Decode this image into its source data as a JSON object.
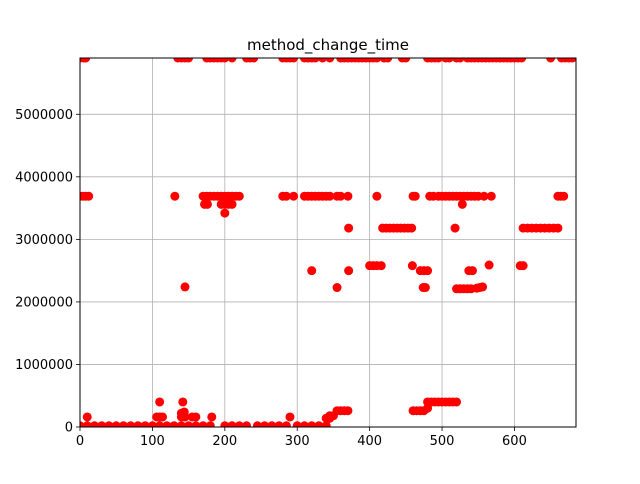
{
  "chart_data": {
    "type": "scatter",
    "title": "method_change_time",
    "xlabel": "",
    "ylabel": "",
    "xlim": [
      0,
      685
    ],
    "ylim": [
      0,
      5900000
    ],
    "grid": true,
    "marker_color": "#ff0000",
    "xticks": [
      0,
      100,
      200,
      300,
      400,
      500,
      600
    ],
    "yticks": [
      0,
      1000000,
      2000000,
      3000000,
      4000000,
      5000000
    ],
    "xtick_labels": [
      "0",
      "100",
      "200",
      "300",
      "400",
      "500",
      "600"
    ],
    "ytick_labels": [
      "0",
      "1000000",
      "2000000",
      "3000000",
      "4000000",
      "5000000"
    ],
    "series": [
      {
        "points": [
          [
            0,
            5900000
          ],
          [
            5,
            5900000
          ],
          [
            8,
            5900000
          ],
          [
            135,
            5900000
          ],
          [
            140,
            5900000
          ],
          [
            145,
            5900000
          ],
          [
            150,
            5900000
          ],
          [
            175,
            5900000
          ],
          [
            180,
            5900000
          ],
          [
            185,
            5900000
          ],
          [
            190,
            5900000
          ],
          [
            195,
            5900000
          ],
          [
            200,
            5900000
          ],
          [
            210,
            5900000
          ],
          [
            230,
            5900000
          ],
          [
            235,
            5900000
          ],
          [
            240,
            5900000
          ],
          [
            280,
            5900000
          ],
          [
            285,
            5900000
          ],
          [
            290,
            5900000
          ],
          [
            295,
            5900000
          ],
          [
            310,
            5900000
          ],
          [
            315,
            5900000
          ],
          [
            320,
            5900000
          ],
          [
            325,
            5900000
          ],
          [
            335,
            5900000
          ],
          [
            345,
            5900000
          ],
          [
            360,
            5900000
          ],
          [
            365,
            5900000
          ],
          [
            370,
            5900000
          ],
          [
            375,
            5900000
          ],
          [
            380,
            5900000
          ],
          [
            385,
            5900000
          ],
          [
            390,
            5900000
          ],
          [
            395,
            5900000
          ],
          [
            400,
            5900000
          ],
          [
            405,
            5900000
          ],
          [
            410,
            5900000
          ],
          [
            420,
            5900000
          ],
          [
            425,
            5900000
          ],
          [
            445,
            5900000
          ],
          [
            450,
            5900000
          ],
          [
            480,
            5900000
          ],
          [
            485,
            5900000
          ],
          [
            490,
            5900000
          ],
          [
            495,
            5900000
          ],
          [
            505,
            5900000
          ],
          [
            510,
            5900000
          ],
          [
            520,
            5900000
          ],
          [
            525,
            5900000
          ],
          [
            535,
            5900000
          ],
          [
            540,
            5900000
          ],
          [
            545,
            5900000
          ],
          [
            550,
            5900000
          ],
          [
            555,
            5900000
          ],
          [
            560,
            5900000
          ],
          [
            565,
            5900000
          ],
          [
            570,
            5900000
          ],
          [
            575,
            5900000
          ],
          [
            580,
            5900000
          ],
          [
            585,
            5900000
          ],
          [
            590,
            5900000
          ],
          [
            595,
            5900000
          ],
          [
            600,
            5900000
          ],
          [
            605,
            5900000
          ],
          [
            610,
            5900000
          ],
          [
            650,
            5900000
          ],
          [
            665,
            5900000
          ],
          [
            670,
            5900000
          ],
          [
            675,
            5900000
          ],
          [
            680,
            5900000
          ],
          [
            0,
            3690000
          ],
          [
            4,
            3690000
          ],
          [
            8,
            3690000
          ],
          [
            12,
            3690000
          ],
          [
            131,
            3690000
          ],
          [
            170,
            3690000
          ],
          [
            175,
            3690000
          ],
          [
            180,
            3690000
          ],
          [
            185,
            3690000
          ],
          [
            190,
            3690000
          ],
          [
            195,
            3690000
          ],
          [
            200,
            3690000
          ],
          [
            205,
            3690000
          ],
          [
            210,
            3690000
          ],
          [
            215,
            3690000
          ],
          [
            220,
            3690000
          ],
          [
            172,
            3560000
          ],
          [
            176,
            3560000
          ],
          [
            195,
            3560000
          ],
          [
            200,
            3560000
          ],
          [
            205,
            3560000
          ],
          [
            210,
            3560000
          ],
          [
            200,
            3420000
          ],
          [
            280,
            3690000
          ],
          [
            285,
            3690000
          ],
          [
            295,
            3690000
          ],
          [
            310,
            3690000
          ],
          [
            315,
            3690000
          ],
          [
            320,
            3690000
          ],
          [
            325,
            3690000
          ],
          [
            330,
            3690000
          ],
          [
            335,
            3690000
          ],
          [
            340,
            3690000
          ],
          [
            345,
            3690000
          ],
          [
            355,
            3690000
          ],
          [
            360,
            3690000
          ],
          [
            370,
            3690000
          ],
          [
            410,
            3690000
          ],
          [
            460,
            3690000
          ],
          [
            463,
            3690000
          ],
          [
            483,
            3690000
          ],
          [
            488,
            3690000
          ],
          [
            495,
            3690000
          ],
          [
            500,
            3690000
          ],
          [
            505,
            3690000
          ],
          [
            510,
            3690000
          ],
          [
            515,
            3690000
          ],
          [
            520,
            3690000
          ],
          [
            525,
            3690000
          ],
          [
            530,
            3690000
          ],
          [
            535,
            3690000
          ],
          [
            540,
            3690000
          ],
          [
            545,
            3690000
          ],
          [
            550,
            3690000
          ],
          [
            558,
            3690000
          ],
          [
            568,
            3690000
          ],
          [
            528,
            3560000
          ],
          [
            660,
            3690000
          ],
          [
            664,
            3690000
          ],
          [
            668,
            3690000
          ],
          [
            371,
            3180000
          ],
          [
            418,
            3180000
          ],
          [
            423,
            3180000
          ],
          [
            428,
            3180000
          ],
          [
            433,
            3180000
          ],
          [
            438,
            3180000
          ],
          [
            443,
            3180000
          ],
          [
            448,
            3180000
          ],
          [
            453,
            3180000
          ],
          [
            458,
            3180000
          ],
          [
            518,
            3180000
          ],
          [
            612,
            3180000
          ],
          [
            618,
            3180000
          ],
          [
            624,
            3180000
          ],
          [
            630,
            3180000
          ],
          [
            636,
            3180000
          ],
          [
            642,
            3180000
          ],
          [
            648,
            3180000
          ],
          [
            654,
            3180000
          ],
          [
            660,
            3180000
          ],
          [
            400,
            2580000
          ],
          [
            405,
            2580000
          ],
          [
            410,
            2580000
          ],
          [
            416,
            2580000
          ],
          [
            459,
            2580000
          ],
          [
            565,
            2590000
          ],
          [
            608,
            2580000
          ],
          [
            612,
            2580000
          ],
          [
            320,
            2500000
          ],
          [
            371,
            2500000
          ],
          [
            470,
            2500000
          ],
          [
            475,
            2500000
          ],
          [
            480,
            2500000
          ],
          [
            537,
            2500000
          ],
          [
            542,
            2500000
          ],
          [
            145,
            2240000
          ],
          [
            355,
            2230000
          ],
          [
            474,
            2230000
          ],
          [
            477,
            2230000
          ],
          [
            520,
            2210000
          ],
          [
            525,
            2210000
          ],
          [
            530,
            2210000
          ],
          [
            535,
            2210000
          ],
          [
            540,
            2210000
          ],
          [
            548,
            2220000
          ],
          [
            552,
            2230000
          ],
          [
            556,
            2240000
          ],
          [
            480,
            400000
          ],
          [
            485,
            400000
          ],
          [
            490,
            400000
          ],
          [
            495,
            400000
          ],
          [
            500,
            400000
          ],
          [
            505,
            400000
          ],
          [
            510,
            400000
          ],
          [
            515,
            400000
          ],
          [
            520,
            400000
          ],
          [
            460,
            260000
          ],
          [
            465,
            260000
          ],
          [
            470,
            260000
          ],
          [
            475,
            260000
          ],
          [
            480,
            300000
          ],
          [
            355,
            260000
          ],
          [
            360,
            260000
          ],
          [
            365,
            260000
          ],
          [
            370,
            260000
          ],
          [
            345,
            180000
          ],
          [
            350,
            180000
          ],
          [
            340,
            140000
          ],
          [
            345,
            140000
          ],
          [
            110,
            400000
          ],
          [
            142,
            400000
          ],
          [
            106,
            160000
          ],
          [
            110,
            160000
          ],
          [
            114,
            160000
          ],
          [
            140,
            220000
          ],
          [
            144,
            240000
          ],
          [
            140,
            160000
          ],
          [
            145,
            160000
          ],
          [
            155,
            160000
          ],
          [
            160,
            160000
          ],
          [
            182,
            160000
          ],
          [
            290,
            160000
          ],
          [
            10,
            160000
          ],
          [
            0,
            20000
          ],
          [
            10,
            20000
          ],
          [
            20,
            20000
          ],
          [
            30,
            20000
          ],
          [
            40,
            20000
          ],
          [
            50,
            20000
          ],
          [
            60,
            20000
          ],
          [
            70,
            20000
          ],
          [
            80,
            20000
          ],
          [
            90,
            20000
          ],
          [
            100,
            20000
          ],
          [
            110,
            20000
          ],
          [
            120,
            20000
          ],
          [
            130,
            20000
          ],
          [
            140,
            20000
          ],
          [
            150,
            20000
          ],
          [
            160,
            20000
          ],
          [
            170,
            20000
          ],
          [
            180,
            20000
          ],
          [
            200,
            20000
          ],
          [
            210,
            20000
          ],
          [
            220,
            20000
          ],
          [
            230,
            20000
          ],
          [
            245,
            20000
          ],
          [
            255,
            20000
          ],
          [
            265,
            20000
          ],
          [
            275,
            20000
          ],
          [
            285,
            20000
          ],
          [
            300,
            20000
          ],
          [
            310,
            20000
          ],
          [
            320,
            20000
          ],
          [
            330,
            20000
          ],
          [
            340,
            20000
          ]
        ]
      }
    ]
  }
}
